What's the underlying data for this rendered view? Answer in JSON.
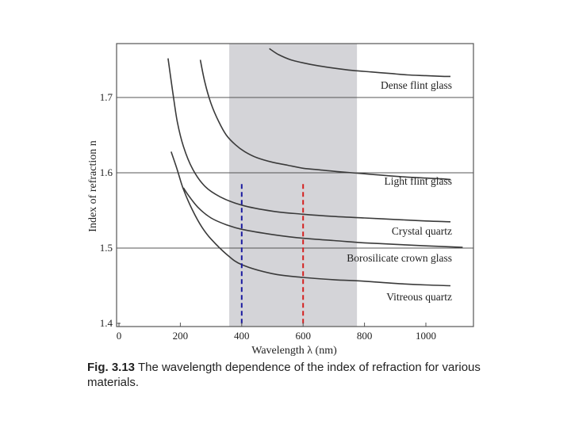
{
  "chart_data": {
    "type": "line",
    "title": "",
    "xlabel": "Wavelength λ (nm)",
    "ylabel": "Index of refraction n",
    "xlim": [
      0,
      1120
    ],
    "ylim": [
      1.4,
      1.77
    ],
    "xticks": [
      0,
      200,
      400,
      600,
      800,
      1000
    ],
    "yticks": [
      1.4,
      1.5,
      1.6,
      1.7
    ],
    "ytick_labels": [
      "1.4",
      "1.5",
      "1.6",
      "1.7"
    ],
    "gridlines_y": [
      1.5,
      1.6,
      1.7
    ],
    "visible_band_nm": [
      380,
      760
    ],
    "markers": [
      {
        "name": "blue",
        "x": 400,
        "color": "#1a1aa0",
        "y_top": 1.585
      },
      {
        "name": "red",
        "x": 600,
        "color": "#d42020",
        "y_top": 1.585
      }
    ],
    "series": [
      {
        "name": "Dense flint glass",
        "x": [
          490,
          520,
          560,
          600,
          650,
          700,
          760,
          820,
          880,
          940,
          1000,
          1060,
          1080
        ],
        "y": [
          1.765,
          1.757,
          1.75,
          1.746,
          1.742,
          1.739,
          1.736,
          1.734,
          1.732,
          1.73,
          1.729,
          1.728,
          1.728
        ]
      },
      {
        "name": "Light flint glass",
        "x": [
          265,
          280,
          300,
          325,
          350,
          380,
          410,
          450,
          500,
          550,
          600,
          650,
          700,
          760,
          850,
          950,
          1050,
          1080
        ],
        "y": [
          1.75,
          1.72,
          1.692,
          1.668,
          1.65,
          1.637,
          1.628,
          1.62,
          1.614,
          1.61,
          1.606,
          1.604,
          1.602,
          1.6,
          1.597,
          1.594,
          1.592,
          1.591
        ]
      },
      {
        "name": "Crystal quartz",
        "x": [
          160,
          175,
          190,
          210,
          240,
          280,
          330,
          400,
          500,
          600,
          700,
          800,
          900,
          1000,
          1080
        ],
        "y": [
          1.752,
          1.708,
          1.668,
          1.635,
          1.605,
          1.582,
          1.568,
          1.557,
          1.549,
          1.545,
          1.542,
          1.54,
          1.538,
          1.536,
          1.535
        ]
      },
      {
        "name": "Borosilicate crown glass",
        "x": [
          210,
          230,
          260,
          300,
          350,
          400,
          500,
          600,
          700,
          800,
          900,
          1000,
          1120
        ],
        "y": [
          1.58,
          1.568,
          1.553,
          1.54,
          1.531,
          1.525,
          1.518,
          1.513,
          1.51,
          1.507,
          1.505,
          1.503,
          1.501
        ]
      },
      {
        "name": "Vitreous quartz",
        "x": [
          170,
          190,
          210,
          240,
          270,
          300,
          350,
          400,
          500,
          600,
          700,
          800,
          900,
          1000,
          1080
        ],
        "y": [
          1.628,
          1.604,
          1.578,
          1.55,
          1.528,
          1.512,
          1.492,
          1.478,
          1.466,
          1.461,
          1.458,
          1.456,
          1.453,
          1.451,
          1.45
        ]
      }
    ],
    "series_label_text": {
      "dense_flint": "Dense flint glass",
      "light_flint": "Light flint glass",
      "crystal_quartz": "Crystal quartz",
      "borosilicate": "Borosilicate crown glass",
      "vitreous": "Vitreous quartz"
    }
  },
  "caption": {
    "figure_number": "Fig. 3.13",
    "text": "The wavelength dependence of the index of refraction for various materials."
  },
  "colors": {
    "band": "#d4d4d8",
    "curve": "#3a3a3a",
    "grid": "#555555",
    "frame": "#555555"
  }
}
